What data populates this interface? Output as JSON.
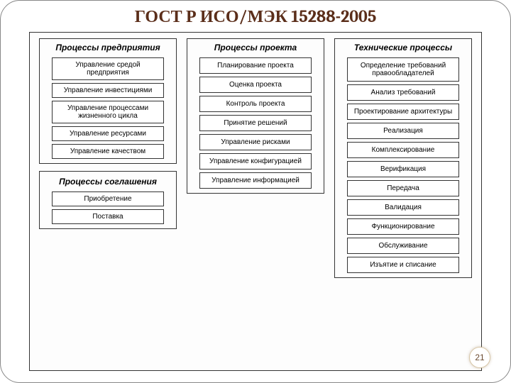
{
  "title": "ГОСТ Р ИСО/МЭК 15288-2005",
  "page_number": "21",
  "colors": {
    "title_color": "#5b2e1a",
    "border_color": "#333333",
    "background": "#ffffff",
    "pagenum_color": "#6b4a2f"
  },
  "columns": [
    {
      "header": "Процессы предприятия",
      "items": [
        "Управление средой предприятия",
        "Управление инвестициями",
        "Управление процессами жизненного цикла",
        "Управление ресурсами",
        "Управление качеством"
      ],
      "sub_header": "Процессы соглашения",
      "sub_items": [
        "Приобретение",
        "Поставка"
      ]
    },
    {
      "header": "Процессы проекта",
      "items": [
        "Планирование проекта",
        "Оценка проекта",
        "Контроль проекта",
        "Принятие решений",
        "Управление рисками",
        "Управление конфигурацией",
        "Управление информацией"
      ]
    },
    {
      "header": "Технические процессы",
      "items": [
        "Определение требований правообладателей",
        "Анализ требований",
        "Проектирование архитектуры",
        "Реализация",
        "Комплексирование",
        "Верификация",
        "Передача",
        "Валидация",
        "Функционирование",
        "Обслуживание",
        "Изъятие и списание"
      ]
    }
  ]
}
